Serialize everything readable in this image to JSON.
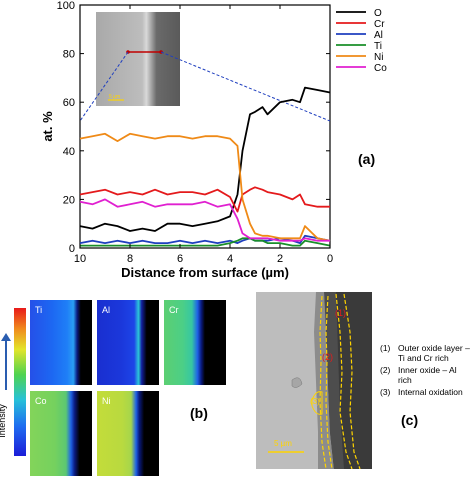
{
  "chart_data": {
    "type": "line",
    "xlabel": "Distance from surface (µm)",
    "ylabel": "at. %",
    "xlim": [
      10,
      0
    ],
    "ylim": [
      0,
      100
    ],
    "xticks": [
      10,
      8,
      6,
      4,
      2,
      0
    ],
    "yticks": [
      0,
      20,
      40,
      60,
      80,
      100
    ],
    "legend_position": "top-right",
    "x": [
      10,
      9.5,
      9,
      8.5,
      8,
      7.5,
      7,
      6.5,
      6,
      5.5,
      5,
      4.5,
      4,
      3.7,
      3.5,
      3.2,
      3,
      2.7,
      2.5,
      2,
      1.5,
      1.2,
      1,
      0.5,
      0
    ],
    "series": [
      {
        "name": "O",
        "color": "#000000",
        "values": [
          9,
          8,
          10,
          9,
          7,
          8,
          7,
          10,
          10,
          9,
          10,
          11,
          13,
          22,
          40,
          55,
          56,
          58,
          55,
          60,
          61,
          60,
          66,
          65,
          64
        ]
      },
      {
        "name": "Cr",
        "color": "#e41a1c",
        "values": [
          22,
          23,
          24,
          22,
          23,
          22,
          24,
          22,
          23,
          23,
          22,
          24,
          21,
          15,
          22,
          24,
          25,
          24,
          23,
          22,
          20,
          22,
          18,
          17,
          17
        ]
      },
      {
        "name": "Al",
        "color": "#1f3fbf",
        "values": [
          2,
          3,
          2,
          3,
          2,
          3,
          2,
          2,
          3,
          2,
          3,
          2,
          3,
          2,
          3,
          4,
          3,
          3,
          3,
          4,
          3,
          2,
          5,
          4,
          3
        ]
      },
      {
        "name": "Ti",
        "color": "#1a8f2a",
        "values": [
          1,
          1,
          1,
          1,
          1,
          1,
          1,
          1,
          1,
          1,
          1,
          1,
          2,
          3,
          4,
          4,
          3,
          3,
          2,
          2,
          1,
          1,
          3,
          2,
          1
        ]
      },
      {
        "name": "Ni",
        "color": "#ef8a17",
        "values": [
          45,
          46,
          47,
          44,
          47,
          46,
          45,
          46,
          46,
          45,
          46,
          46,
          45,
          42,
          20,
          10,
          6,
          5,
          5,
          4,
          4,
          4,
          9,
          4,
          3
        ]
      },
      {
        "name": "Co",
        "color": "#e020d0",
        "values": [
          19,
          18,
          20,
          17,
          18,
          19,
          17,
          18,
          18,
          18,
          19,
          17,
          18,
          12,
          6,
          4,
          4,
          4,
          4,
          3,
          3,
          3,
          4,
          3,
          3
        ]
      }
    ]
  },
  "panels": {
    "a_label": "(a)",
    "b_label": "(b)",
    "c_label": "(c)"
  },
  "inset": {
    "scale_label": "5 µm"
  },
  "eds_map": {
    "colorbar_label": "Intensity",
    "tiles": [
      {
        "label": "Ti"
      },
      {
        "label": "Al"
      },
      {
        "label": "Cr"
      },
      {
        "label": "Co"
      },
      {
        "label": "Ni"
      }
    ]
  },
  "sem": {
    "scale_label": "5 µm",
    "region_labels": [
      "(1)",
      "(2)",
      "(3)"
    ]
  },
  "legend_notes": [
    {
      "num": "(1)",
      "text": "Outer oxide layer – Ti and Cr rich"
    },
    {
      "num": "(2)",
      "text": "Inner oxide – Al rich"
    },
    {
      "num": "(3)",
      "text": "Internal oxidation"
    }
  ]
}
